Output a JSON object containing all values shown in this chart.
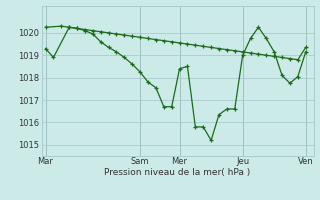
{
  "background_color": "#cceae7",
  "grid_color": "#aacccc",
  "line_color": "#1a6b1a",
  "xlabel": "Pression niveau de la mer( hPa )",
  "ylim": [
    1014.5,
    1021.2
  ],
  "yticks": [
    1015,
    1016,
    1017,
    1018,
    1019,
    1020
  ],
  "xtick_labels": [
    "Mar",
    "Sam",
    "Mer",
    "Jeu",
    "Ven"
  ],
  "xtick_positions": [
    0,
    12,
    17,
    25,
    33
  ],
  "series1_x": [
    0,
    1,
    3,
    4,
    5,
    6,
    7,
    8,
    9,
    10,
    11,
    12,
    13,
    14,
    15,
    16,
    17,
    18,
    19,
    20,
    21,
    22,
    23,
    24,
    25,
    26,
    27,
    28,
    29,
    30,
    31,
    32,
    33
  ],
  "series1_y": [
    1019.3,
    1018.9,
    1020.25,
    1020.2,
    1020.1,
    1019.95,
    1019.6,
    1019.35,
    1019.15,
    1018.9,
    1018.6,
    1018.25,
    1017.8,
    1017.55,
    1016.7,
    1016.7,
    1018.4,
    1018.5,
    1015.8,
    1015.8,
    1015.2,
    1016.35,
    1016.6,
    1016.6,
    1019.0,
    1019.75,
    1020.25,
    1019.75,
    1019.15,
    1018.1,
    1017.75,
    1018.05,
    1019.15
  ],
  "series2_x": [
    0,
    2,
    3,
    4,
    5,
    6,
    7,
    8,
    9,
    10,
    11,
    12,
    13,
    14,
    15,
    16,
    17,
    18,
    19,
    20,
    21,
    22,
    23,
    24,
    25,
    26,
    27,
    28,
    29,
    30,
    31,
    32,
    33
  ],
  "series2_y": [
    1020.25,
    1020.3,
    1020.25,
    1020.2,
    1020.15,
    1020.1,
    1020.05,
    1020.0,
    1019.95,
    1019.9,
    1019.85,
    1019.8,
    1019.75,
    1019.7,
    1019.65,
    1019.6,
    1019.55,
    1019.5,
    1019.45,
    1019.4,
    1019.35,
    1019.3,
    1019.25,
    1019.2,
    1019.15,
    1019.1,
    1019.05,
    1019.0,
    1018.95,
    1018.9,
    1018.85,
    1018.8,
    1019.35
  ]
}
